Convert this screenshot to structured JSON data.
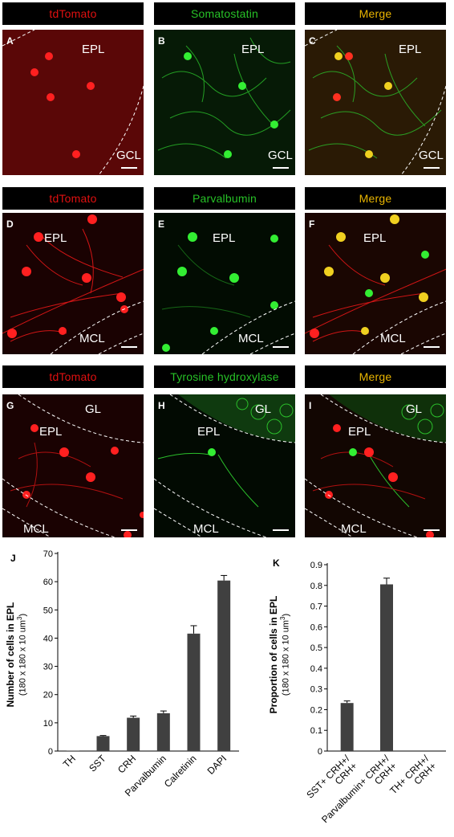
{
  "rows": [
    {
      "headers": [
        {
          "text": "tdTomato",
          "color": "#e01010"
        },
        {
          "text": "Somatostatin",
          "color": "#27c227"
        },
        {
          "text": "Merge",
          "color": "#e8b400"
        }
      ],
      "panels": [
        {
          "letter": "A",
          "regions": [
            "EPL",
            "GCL"
          ]
        },
        {
          "letter": "B",
          "regions": [
            "EPL",
            "GCL"
          ]
        },
        {
          "letter": "C",
          "regions": [
            "EPL",
            "GCL"
          ]
        }
      ]
    },
    {
      "headers": [
        {
          "text": "tdTomato",
          "color": "#e01010"
        },
        {
          "text": "Parvalbumin",
          "color": "#27c227"
        },
        {
          "text": "Merge",
          "color": "#e8b400"
        }
      ],
      "panels": [
        {
          "letter": "D",
          "regions": [
            "EPL",
            "MCL"
          ]
        },
        {
          "letter": "E",
          "regions": [
            "EPL",
            "MCL"
          ]
        },
        {
          "letter": "F",
          "regions": [
            "EPL",
            "MCL"
          ]
        }
      ]
    },
    {
      "headers": [
        {
          "text": "tdTomato",
          "color": "#e01010"
        },
        {
          "text": "Tyrosine hydroxylase",
          "color": "#27c227"
        },
        {
          "text": "Merge",
          "color": "#e8b400"
        }
      ],
      "panels": [
        {
          "letter": "G",
          "regions": [
            "GL",
            "EPL",
            "MCL"
          ]
        },
        {
          "letter": "H",
          "regions": [
            "GL",
            "EPL",
            "MCL"
          ]
        },
        {
          "letter": "I",
          "regions": [
            "GL",
            "EPL",
            "MCL"
          ]
        }
      ]
    }
  ],
  "chart_data": [
    {
      "panel": "J",
      "type": "bar",
      "categories": [
        "TH",
        "SST",
        "CRH",
        "Parvalbumin",
        "Calretinin",
        "DAPI"
      ],
      "values": [
        0.1,
        5.3,
        11.8,
        13.4,
        41.6,
        60.4
      ],
      "errors": [
        0,
        0.2,
        0.6,
        0.8,
        2.8,
        1.8
      ],
      "ylim": [
        0,
        70
      ],
      "yticks": [
        "0",
        "10",
        "20",
        "30",
        "40",
        "50",
        "60",
        "70"
      ],
      "ylabel": "Number of cells in EPL",
      "ylabel_sub": "(180 x 180 x 10 um",
      "ylabel_sup": "3",
      "ylabel_end": ")",
      "bar_color": "#404040"
    },
    {
      "panel": "K",
      "type": "bar",
      "categories": [
        "SST+ CRH+/\nCRH+",
        "Parvalbumin+ CRH+/\nCRH+",
        "TH+ CRH+/\nCRH+"
      ],
      "values": [
        0.232,
        0.805,
        0
      ],
      "errors": [
        0.01,
        0.03,
        0
      ],
      "ylim": [
        0,
        0.9
      ],
      "yticks": [
        "0",
        "0.1",
        "0.2",
        "0.3",
        "0.4",
        "0.5",
        "0.6",
        "0.7",
        "0.8",
        "0.9"
      ],
      "ylabel": "Proportion of cells in EPL",
      "ylabel_sub": "(180 x 180 x 10 um",
      "ylabel_sup": "3",
      "ylabel_end": ")",
      "bar_color": "#404040"
    }
  ]
}
